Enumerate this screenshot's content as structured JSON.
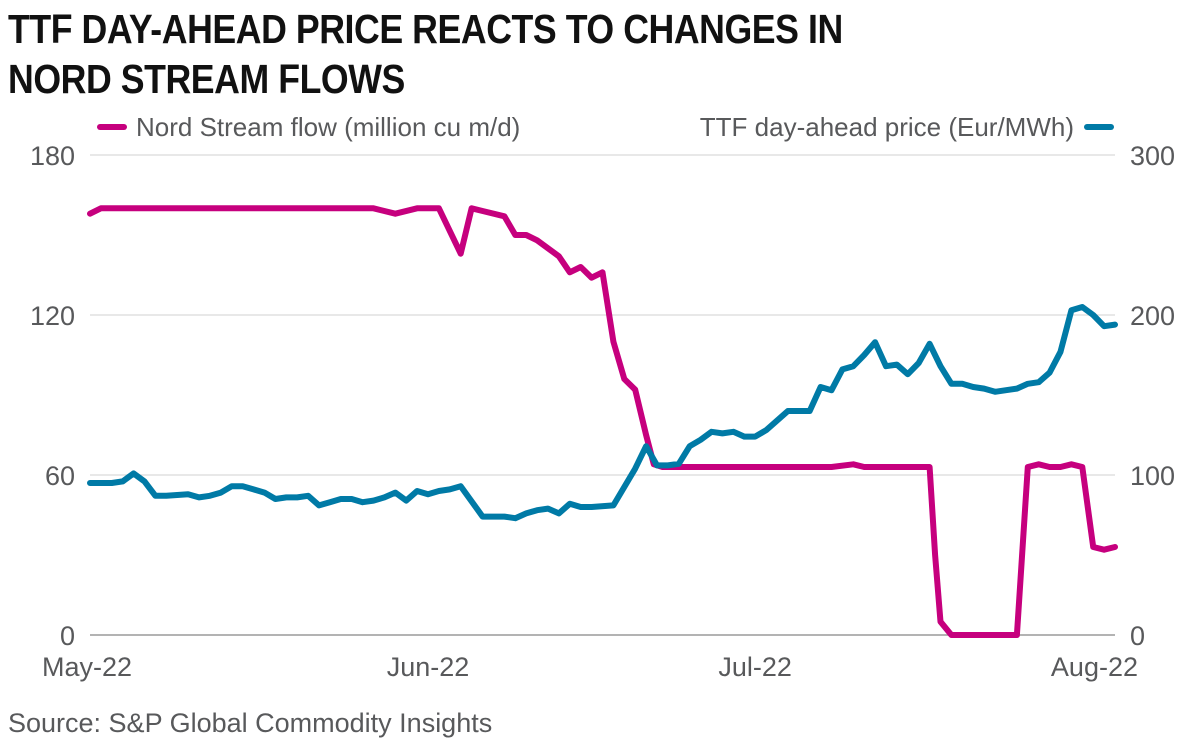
{
  "title_line1": "TTF DAY-AHEAD PRICE REACTS TO CHANGES IN",
  "title_line2": "NORD STREAM FLOWS",
  "source": "Source: S&P Global Commodity Insights",
  "chart_data": {
    "type": "line",
    "title": "TTF DAY-AHEAD PRICE REACTS TO CHANGES IN NORD STREAM FLOWS",
    "x_tick_labels": [
      "May-22",
      "Jun-22",
      "Jul-22",
      "Aug-22"
    ],
    "x_ticks_day_index": [
      0,
      31,
      61,
      92
    ],
    "x_range": [
      0,
      94
    ],
    "left_axis": {
      "ylim": [
        0,
        180
      ],
      "ticks": [
        0,
        60,
        120,
        180
      ],
      "tick_labels": [
        "0",
        "60",
        "120",
        "180"
      ]
    },
    "right_axis": {
      "ylim": [
        0,
        300
      ],
      "ticks": [
        0,
        100,
        200,
        300
      ],
      "tick_labels": [
        "0",
        "100",
        "200",
        "300"
      ]
    },
    "grid": true,
    "legend_position": "top",
    "series": [
      {
        "name": "Nord Stream flow (million cu m/d)",
        "axis": "left",
        "color": "#c6007e",
        "x": [
          0,
          1,
          4,
          6,
          8,
          10,
          12,
          14,
          16,
          18,
          20,
          22,
          24,
          26,
          28,
          30,
          31,
          32,
          34,
          35,
          36,
          38,
          39,
          40,
          41,
          42,
          43,
          44,
          45,
          46,
          47,
          48,
          49,
          50,
          51,
          51.7,
          52.5,
          53.5,
          54.5,
          56,
          60,
          64,
          68,
          70,
          71,
          72,
          74,
          75,
          76,
          77,
          77.5,
          78,
          79,
          80,
          81,
          84,
          85,
          86,
          87,
          88,
          89,
          90,
          91,
          92,
          93,
          94
        ],
        "values": [
          158,
          160,
          160,
          160,
          160,
          160,
          160,
          160,
          160,
          160,
          160,
          160,
          160,
          160,
          158,
          160,
          160,
          160,
          143,
          160,
          159,
          157,
          150,
          150,
          148,
          145,
          142,
          136,
          138,
          134,
          136,
          110,
          96,
          92,
          75,
          64,
          63,
          63,
          63,
          63,
          63,
          63,
          63,
          64,
          63,
          63,
          63,
          63,
          63,
          63,
          30,
          5,
          0,
          0,
          0,
          0,
          0,
          63,
          64,
          63,
          63,
          64,
          63,
          33,
          32,
          33
        ]
      },
      {
        "name": "TTF day-ahead price (Eur/MWh)",
        "axis": "right",
        "color": "#007aa6",
        "x": [
          0,
          2,
          3,
          4,
          5,
          6,
          7,
          9,
          10,
          11,
          12,
          13,
          14,
          15,
          16,
          17,
          18,
          19,
          20,
          21,
          22,
          23,
          24,
          25,
          26,
          27,
          28,
          29,
          30,
          31,
          32,
          33,
          34,
          36,
          38,
          39,
          40,
          41,
          42,
          43,
          44,
          45,
          46,
          48,
          50,
          51,
          52,
          53,
          54,
          55,
          56,
          57,
          58,
          59,
          60,
          61,
          62,
          63,
          64,
          65,
          66,
          67,
          68,
          69,
          70,
          71,
          72,
          73,
          74,
          75,
          76,
          77,
          78,
          79,
          80,
          81,
          82,
          83,
          84,
          85,
          86,
          87,
          88,
          89,
          90,
          91,
          92,
          93,
          94
        ],
        "values": [
          95,
          95,
          96,
          101,
          96,
          87,
          87,
          88,
          86,
          87,
          89,
          93,
          93,
          91,
          89,
          85,
          86,
          86,
          87,
          81,
          83,
          85,
          85,
          83,
          84,
          86,
          89,
          84,
          90,
          88,
          90,
          91,
          93,
          74,
          74,
          73,
          76,
          78,
          79,
          76,
          82,
          80,
          80,
          81,
          104,
          118,
          106,
          106,
          107,
          118,
          122,
          127,
          126,
          127,
          124,
          124,
          128,
          134,
          140,
          140,
          140,
          155,
          153,
          166,
          168,
          175,
          183,
          168,
          169,
          163,
          170,
          182,
          168,
          157,
          157,
          155,
          154,
          152,
          153,
          154,
          157,
          158,
          164,
          177,
          203,
          205,
          200,
          193,
          194
        ]
      }
    ]
  }
}
